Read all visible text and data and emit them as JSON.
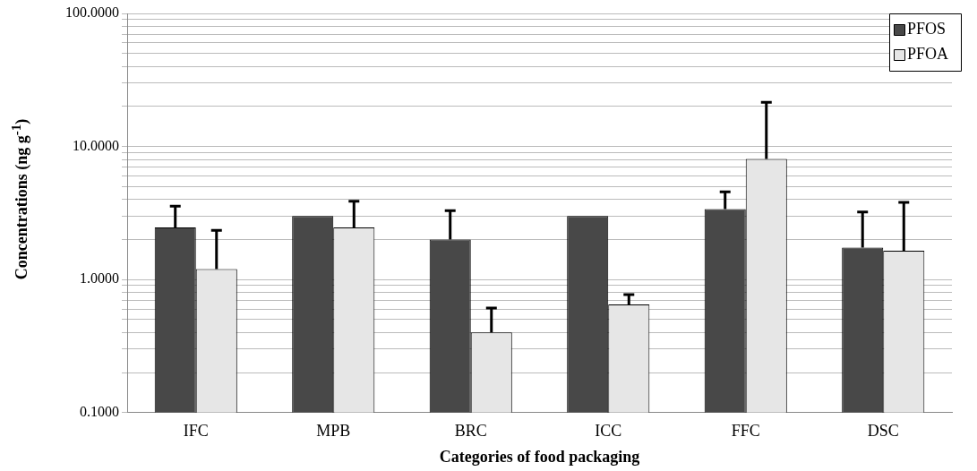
{
  "chart_data": {
    "type": "bar",
    "xlabel": "Categories of food packaging",
    "ylabel": "Concentrations (ng g$^{-1}$)",
    "categories": [
      "IFC",
      "MPB",
      "BRC",
      "ICC",
      "FFC",
      "DSC"
    ],
    "series": [
      {
        "name": "PFOS",
        "color": "#484848",
        "values": [
          2.46,
          3.0,
          2.0,
          3.0,
          3.38,
          1.74
        ],
        "errors": [
          [
            2.46,
            3.56
          ],
          null,
          [
            2.0,
            3.3
          ],
          null,
          [
            3.38,
            4.57
          ],
          [
            1.74,
            3.22
          ]
        ]
      },
      {
        "name": "PFOA",
        "color": "#e6e6e6",
        "values": [
          1.2,
          2.46,
          0.4,
          0.65,
          8.05,
          1.65
        ],
        "errors": [
          [
            1.2,
            2.34
          ],
          [
            2.46,
            3.87
          ],
          [
            0.4,
            0.61
          ],
          [
            0.65,
            0.77
          ],
          [
            8.05,
            21.5
          ],
          [
            1.65,
            3.8
          ]
        ]
      }
    ],
    "log": "y",
    "ylim": [
      0.1,
      100
    ],
    "yticks": [
      {
        "value": 0.1,
        "label": "0.1000"
      },
      {
        "value": 0.2,
        "label": null
      },
      {
        "value": 0.3,
        "label": null
      },
      {
        "value": 0.4,
        "label": null
      },
      {
        "value": 0.5,
        "label": null
      },
      {
        "value": 0.6,
        "label": null
      },
      {
        "value": 0.7,
        "label": null
      },
      {
        "value": 0.8,
        "label": null
      },
      {
        "value": 0.9,
        "label": null
      },
      {
        "value": 1,
        "label": "1.0000"
      },
      {
        "value": 2,
        "label": null
      },
      {
        "value": 3,
        "label": null
      },
      {
        "value": 4,
        "label": null
      },
      {
        "value": 5,
        "label": null
      },
      {
        "value": 6,
        "label": null
      },
      {
        "value": 7,
        "label": null
      },
      {
        "value": 8,
        "label": null
      },
      {
        "value": 9,
        "label": null
      },
      {
        "value": 10,
        "label": "10.0000"
      },
      {
        "value": 20,
        "label": null
      },
      {
        "value": 30,
        "label": null
      },
      {
        "value": 40,
        "label": null
      },
      {
        "value": 50,
        "label": null
      },
      {
        "value": 60,
        "label": null
      },
      {
        "value": 70,
        "label": null
      },
      {
        "value": 80,
        "label": null
      },
      {
        "value": 90,
        "label": null
      },
      {
        "value": 100,
        "label": "100.0000"
      }
    ],
    "grid": "y",
    "legend": "top right"
  }
}
